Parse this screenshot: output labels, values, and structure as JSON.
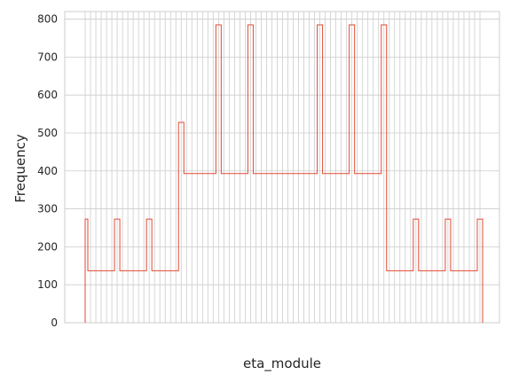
{
  "chart_data": {
    "type": "step",
    "xlabel": "eta_module",
    "ylabel": "Frequency",
    "ylim": [
      0,
      820
    ],
    "yticks": [
      0,
      100,
      200,
      300,
      400,
      500,
      600,
      700,
      800
    ],
    "grid": true,
    "line_color": "#e24a33",
    "grid_color": "#cccccc",
    "x_tick_labels_legible": false,
    "segments": [
      {
        "from": 0.0,
        "to": 0.5,
        "value": 273
      },
      {
        "from": 0.5,
        "to": 5.5,
        "value": 137
      },
      {
        "from": 5.5,
        "to": 6.5,
        "value": 273
      },
      {
        "from": 6.5,
        "to": 11.5,
        "value": 137
      },
      {
        "from": 11.5,
        "to": 12.5,
        "value": 273
      },
      {
        "from": 12.5,
        "to": 17.5,
        "value": 137
      },
      {
        "from": 17.5,
        "to": 18.5,
        "value": 528
      },
      {
        "from": 18.5,
        "to": 24.5,
        "value": 393
      },
      {
        "from": 24.5,
        "to": 25.5,
        "value": 785
      },
      {
        "from": 25.5,
        "to": 30.5,
        "value": 393
      },
      {
        "from": 30.5,
        "to": 31.5,
        "value": 785
      },
      {
        "from": 31.5,
        "to": 43.5,
        "value": 393
      },
      {
        "from": 43.5,
        "to": 44.5,
        "value": 785
      },
      {
        "from": 44.5,
        "to": 49.5,
        "value": 393
      },
      {
        "from": 49.5,
        "to": 50.5,
        "value": 785
      },
      {
        "from": 50.5,
        "to": 55.5,
        "value": 393
      },
      {
        "from": 55.5,
        "to": 56.5,
        "value": 785
      },
      {
        "from": 56.5,
        "to": 61.5,
        "value": 137
      },
      {
        "from": 61.5,
        "to": 62.5,
        "value": 273
      },
      {
        "from": 62.5,
        "to": 67.5,
        "value": 137
      },
      {
        "from": 67.5,
        "to": 68.5,
        "value": 273
      },
      {
        "from": 68.5,
        "to": 73.5,
        "value": 137
      },
      {
        "from": 73.5,
        "to": 74.5,
        "value": 273
      }
    ],
    "x_category_count": 75
  }
}
